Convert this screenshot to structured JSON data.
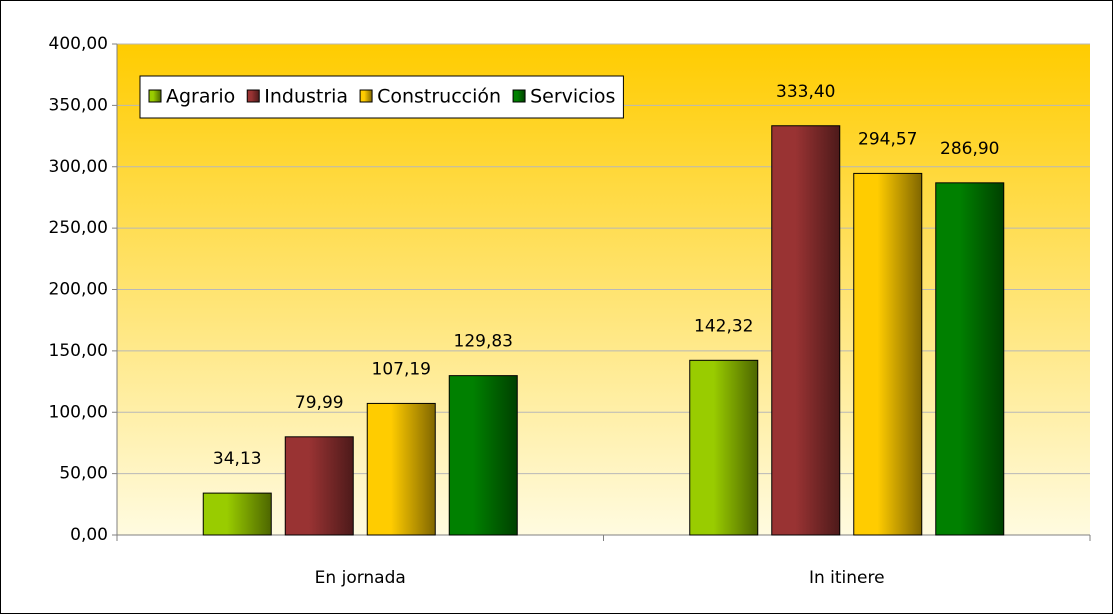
{
  "chart_data": {
    "type": "bar",
    "categories": [
      "En jornada",
      "In itinere"
    ],
    "series": [
      {
        "name": "Agrario",
        "color": "#99cc00",
        "values": [
          34.13,
          142.32
        ],
        "value_labels": [
          "34,13",
          "142,32"
        ]
      },
      {
        "name": "Industria",
        "color": "#993333",
        "values": [
          79.99,
          333.4
        ],
        "value_labels": [
          "79,99",
          "333,40"
        ]
      },
      {
        "name": "Construcción",
        "color": "#ffcc00",
        "values": [
          107.19,
          294.57
        ],
        "value_labels": [
          "107,19",
          "294,57"
        ]
      },
      {
        "name": "Servicios",
        "color": "#008000",
        "values": [
          129.83,
          286.9
        ],
        "value_labels": [
          "129,83",
          "286,90"
        ]
      }
    ],
    "ylim": [
      0,
      400
    ],
    "yticks": [
      {
        "value": 0,
        "label": "0,00"
      },
      {
        "value": 50,
        "label": "50,00"
      },
      {
        "value": 100,
        "label": "100,00"
      },
      {
        "value": 150,
        "label": "150,00"
      },
      {
        "value": 200,
        "label": "200,00"
      },
      {
        "value": 250,
        "label": "250,00"
      },
      {
        "value": 300,
        "label": "300,00"
      },
      {
        "value": 350,
        "label": "350,00"
      },
      {
        "value": 400,
        "label": "400,00"
      }
    ],
    "grid": true,
    "legend": "upper left"
  }
}
